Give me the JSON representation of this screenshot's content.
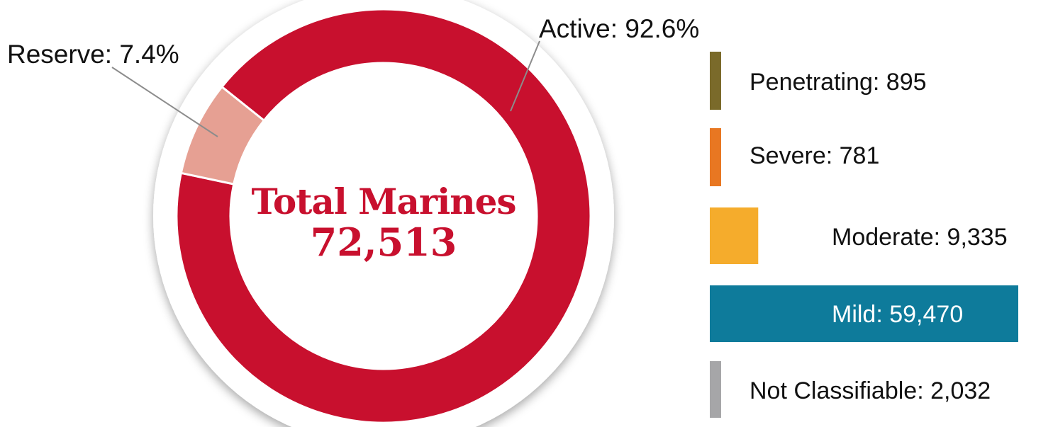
{
  "chart_data": [
    {
      "type": "pie",
      "variant": "donut",
      "center_title": "Total Marines",
      "center_value": "72,513",
      "slices": [
        {
          "label": "Active: 92.6%",
          "name": "Active",
          "value": 92.6,
          "color": "#c8102e"
        },
        {
          "label": "Reserve: 7.4%",
          "name": "Reserve",
          "value": 7.4,
          "color": "#e6a093"
        }
      ]
    },
    {
      "type": "bar",
      "orientation": "horizontal",
      "bars": [
        {
          "label": "Penetrating: 895",
          "value": 895,
          "color": "#7a6a2a"
        },
        {
          "label": "Severe: 781",
          "value": 781,
          "color": "#e87722"
        },
        {
          "label": "Moderate: 9,335",
          "value": 9335,
          "color": "#f5ac2c"
        },
        {
          "label": "Mild: 59,470",
          "value": 59470,
          "color": "#0e7b9b"
        },
        {
          "label": "Not Classifiable: 2,032",
          "value": 2032,
          "color": "#a6a6a8"
        }
      ]
    }
  ]
}
